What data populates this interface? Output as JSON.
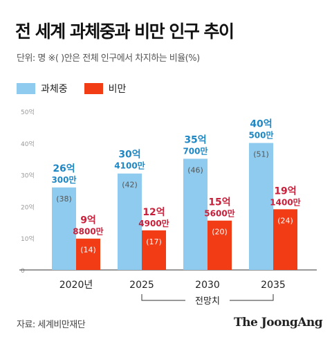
{
  "header": {
    "title": "전 세계 과체중과 비만 인구 추이",
    "unit_note": "단위: 명   ※(  )안은 전체 인구에서 차지하는 비율(%)"
  },
  "legend": [
    {
      "label": "과체중",
      "color": "#8ecbee"
    },
    {
      "label": "비만",
      "color": "#f13c16"
    }
  ],
  "chart_data": {
    "type": "bar",
    "categories": [
      "2020년",
      "2025",
      "2030",
      "2035"
    ],
    "y_ticks": [
      {
        "value": 0,
        "label": "0"
      },
      {
        "value": 10,
        "label": "10억"
      },
      {
        "value": 20,
        "label": "20억"
      },
      {
        "value": 30,
        "label": "30억"
      },
      {
        "value": 40,
        "label": "40억"
      },
      {
        "value": 50,
        "label": "50억"
      }
    ],
    "ylim": [
      0,
      50
    ],
    "grid": false,
    "series": [
      {
        "name": "과체중",
        "color": "#8ecbee",
        "label_color": "#1f88c4",
        "values": [
          26.03,
          30.41,
          35.07,
          40.05
        ],
        "value_labels": [
          [
            "26억",
            "300만"
          ],
          [
            "30억",
            "4100만"
          ],
          [
            "35억",
            "700만"
          ],
          [
            "40억",
            "500만"
          ]
        ],
        "pct_labels": [
          "(38)",
          "(42)",
          "(46)",
          "(51)"
        ]
      },
      {
        "name": "비만",
        "color": "#f13c16",
        "label_color": "#c8203a",
        "values": [
          9.88,
          12.49,
          15.56,
          19.14
        ],
        "value_labels": [
          [
            "9억",
            "8800만"
          ],
          [
            "12억",
            "4900만"
          ],
          [
            "15억",
            "5600만"
          ],
          [
            "19억",
            "1400만"
          ]
        ],
        "pct_labels": [
          "(14)",
          "(17)",
          "(20)",
          "(24)"
        ]
      }
    ],
    "projection_label": "전망치",
    "projection_range": [
      "2025",
      "2035"
    ]
  },
  "footer": {
    "source": "자료: 세계비만재단",
    "brand": "The JoongAng"
  }
}
